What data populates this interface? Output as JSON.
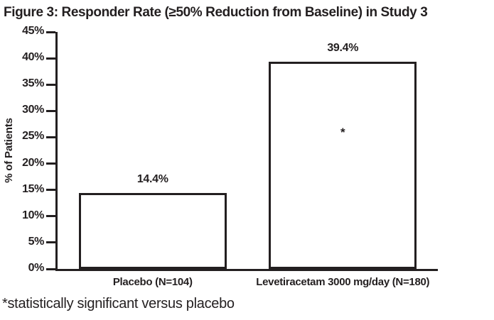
{
  "chart_data": {
    "type": "bar",
    "title": "Figure 3: Responder Rate (≥50% Reduction from Baseline) in Study 3",
    "categories": [
      "Placebo (N=104)",
      "Levetiracetam 3000 mg/day (N=180)"
    ],
    "values": [
      14.4,
      39.4
    ],
    "value_labels": [
      "14.4%",
      "39.4%"
    ],
    "xlabel": "",
    "ylabel": "% of Patients",
    "ylim": [
      0,
      45
    ],
    "ytick_step": 5,
    "ytick_labels": [
      "0%",
      "5%",
      "10%",
      "15%",
      "20%",
      "25%",
      "30%",
      "35%",
      "40%",
      "45%"
    ],
    "grid": false,
    "legend": "none",
    "bar_fill": "#ffffff",
    "bar_border": "#231f20",
    "axis_color": "#231f20",
    "text_color": "#231f20",
    "annotations": [
      {
        "text": "*",
        "category_index": 1,
        "y": 26,
        "meaning": "statistically significant"
      }
    ],
    "footnote": "*statistically significant versus placebo"
  }
}
